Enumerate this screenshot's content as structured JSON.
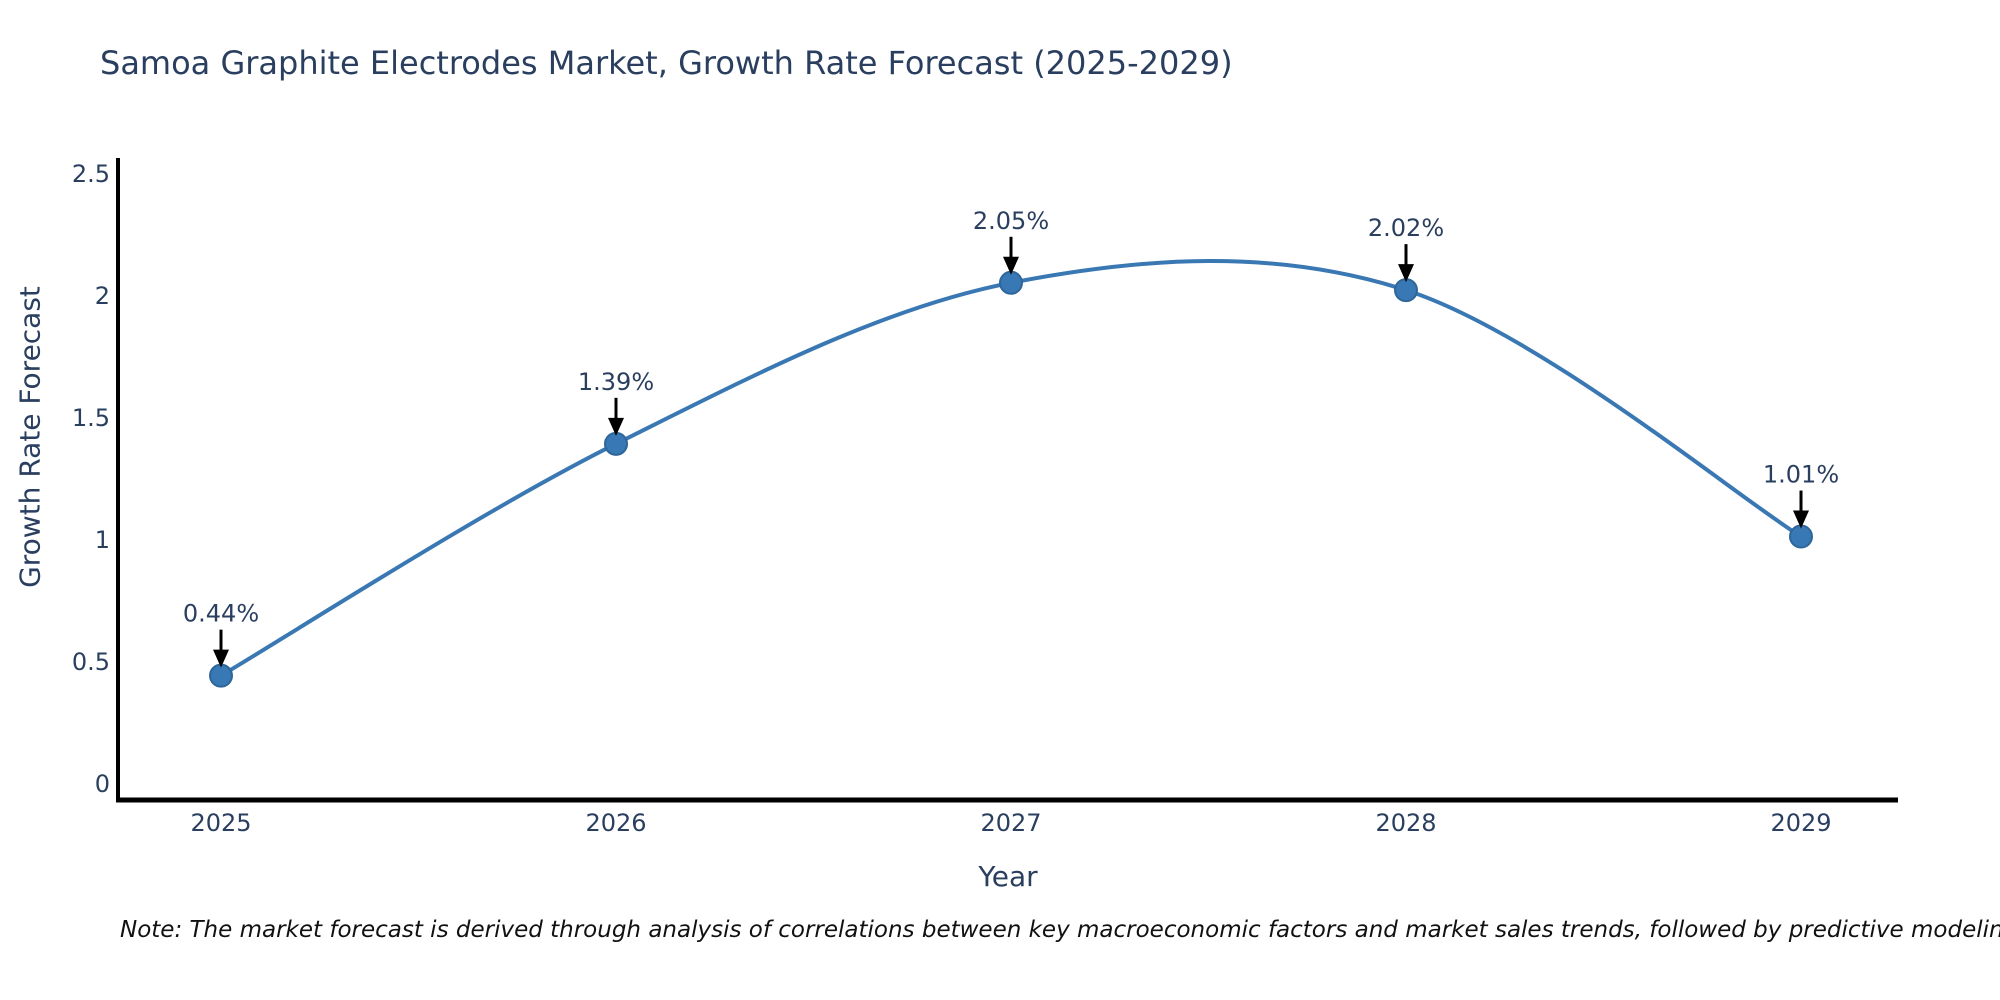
{
  "title": "Samoa Graphite Electrodes Market, Growth Rate Forecast (2025-2029)",
  "note": "Note: The market forecast is derived through analysis of correlations between key macroeconomic factors and market sales trends, followed by predictive modeling to project future sales",
  "colors": {
    "line": "#3a78b3",
    "marker_fill": "#3878b4",
    "marker_edge": "#2f6699",
    "text": "#2a3f5f",
    "axis": "#000000",
    "annotation_text": "#2a3f5f",
    "annotation_arrow": "#000000",
    "background": "#ffffff"
  },
  "chart_data": {
    "type": "line",
    "title": "Samoa Graphite Electrodes Market, Growth Rate Forecast (2025-2029)",
    "xlabel": "Year",
    "ylabel": "Growth Rate Forecast",
    "categories": [
      "2025",
      "2026",
      "2027",
      "2028",
      "2029"
    ],
    "values": [
      0.44,
      1.39,
      2.05,
      2.02,
      1.01
    ],
    "point_labels": [
      "0.44%",
      "1.39%",
      "2.05%",
      "2.02%",
      "1.01%"
    ],
    "yticks": [
      0,
      0.5,
      1,
      1.5,
      2,
      2.5
    ],
    "ytick_labels": [
      "0",
      "0.5",
      "1",
      "1.5",
      "2",
      "2.5"
    ],
    "ylim": [
      0,
      2.5
    ],
    "line_shape": "spline",
    "grid": false,
    "legend": "none",
    "annotations_have_arrows": true
  }
}
